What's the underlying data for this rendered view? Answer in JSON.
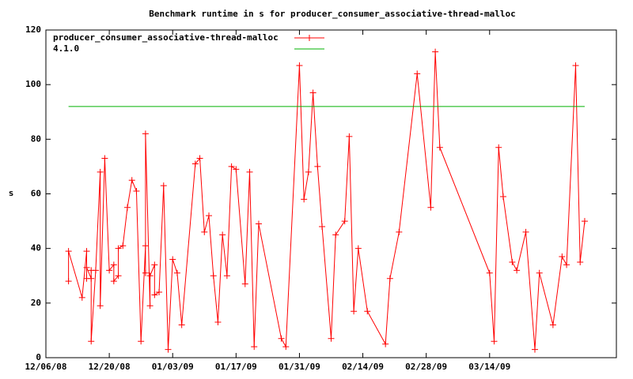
{
  "chart_data": {
    "type": "line",
    "title": "Benchmark runtime in s for producer_consumer_associative-thread-malloc",
    "ylabel": "s",
    "xlim": [
      "2008-12-06",
      "2009-04-11"
    ],
    "xticks": [
      {
        "value": "2008-12-06",
        "label": "12/06/08"
      },
      {
        "value": "2008-12-20",
        "label": "12/20/08"
      },
      {
        "value": "2009-01-03",
        "label": "01/03/09"
      },
      {
        "value": "2009-01-17",
        "label": "01/17/09"
      },
      {
        "value": "2009-01-31",
        "label": "01/31/09"
      },
      {
        "value": "2009-02-14",
        "label": "02/14/09"
      },
      {
        "value": "2009-02-28",
        "label": "02/28/09"
      },
      {
        "value": "2009-03-14",
        "label": "03/14/09"
      }
    ],
    "ylim": [
      0,
      120
    ],
    "yticks": [
      0,
      20,
      40,
      60,
      80,
      100,
      120
    ],
    "grid": false,
    "legend": "top-left",
    "series": [
      {
        "name": "producer_consumer_associative-thread-malloc",
        "color": "#ff0000",
        "marker": "+",
        "x": [
          "2008-12-11",
          "2008-12-11",
          "2008-12-14",
          "2008-12-15",
          "2008-12-15",
          "2008-12-15",
          "2008-12-16",
          "2008-12-16",
          "2008-12-16",
          "2008-12-17",
          "2008-12-18",
          "2008-12-18",
          "2008-12-19",
          "2008-12-20",
          "2008-12-21",
          "2008-12-21",
          "2008-12-22",
          "2008-12-22",
          "2008-12-23",
          "2008-12-24",
          "2008-12-25",
          "2008-12-26",
          "2008-12-27",
          "2008-12-28",
          "2008-12-28",
          "2008-12-28",
          "2008-12-29",
          "2008-12-29",
          "2008-12-30",
          "2008-12-30",
          "2008-12-31",
          "2009-01-01",
          "2009-01-02",
          "2009-01-03",
          "2009-01-04",
          "2009-01-05",
          "2009-01-08",
          "2009-01-09",
          "2009-01-10",
          "2009-01-11",
          "2009-01-12",
          "2009-01-13",
          "2009-01-14",
          "2009-01-15",
          "2009-01-16",
          "2009-01-17",
          "2009-01-19",
          "2009-01-20",
          "2009-01-21",
          "2009-01-22",
          "2009-01-27",
          "2009-01-28",
          "2009-01-31",
          "2009-02-01",
          "2009-02-02",
          "2009-02-03",
          "2009-02-04",
          "2009-02-05",
          "2009-02-07",
          "2009-02-08",
          "2009-02-10",
          "2009-02-11",
          "2009-02-12",
          "2009-02-13",
          "2009-02-15",
          "2009-02-19",
          "2009-02-20",
          "2009-02-22",
          "2009-02-26",
          "2009-03-01",
          "2009-03-02",
          "2009-03-03",
          "2009-03-14",
          "2009-03-15",
          "2009-03-16",
          "2009-03-17",
          "2009-03-19",
          "2009-03-20",
          "2009-03-22",
          "2009-03-24",
          "2009-03-25",
          "2009-03-28",
          "2009-03-30",
          "2009-03-31",
          "2009-04-02",
          "2009-04-03",
          "2009-04-04"
        ],
        "values": [
          28,
          39,
          22,
          39,
          29,
          33,
          29,
          32,
          6,
          32,
          68,
          19,
          73,
          32,
          34,
          28,
          30,
          40,
          41,
          55,
          65,
          61,
          6,
          41,
          31,
          82,
          19,
          30,
          34,
          23,
          24,
          63,
          3,
          36,
          31,
          12,
          71,
          73,
          46,
          52,
          30,
          13,
          45,
          30,
          70,
          69,
          27,
          68,
          4,
          49,
          7,
          4,
          107,
          58,
          68,
          97,
          70,
          48,
          7,
          45,
          50,
          81,
          17,
          40,
          17,
          5,
          29,
          46,
          104,
          55,
          112,
          77,
          31,
          6,
          77,
          59,
          35,
          32,
          46,
          3,
          31,
          12,
          37,
          34,
          107,
          35,
          50
        ]
      },
      {
        "name": "4.1.0",
        "color": "#00b000",
        "x": [
          "2008-12-11",
          "2009-04-04"
        ],
        "values": [
          92,
          92
        ]
      }
    ]
  }
}
